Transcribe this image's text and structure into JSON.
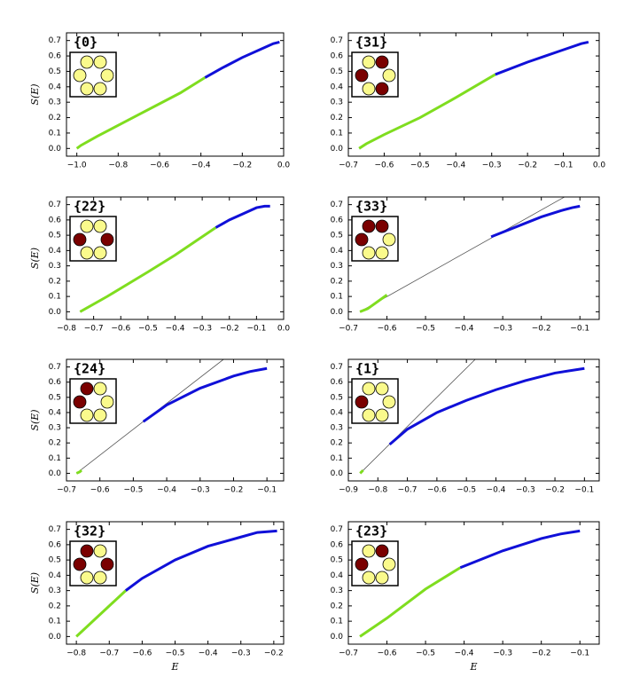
{
  "chart_data": [
    {
      "type": "line",
      "title": "{0}",
      "ylabel": "S(E)",
      "inset_colors": [
        "#fafa8c",
        "#fafa8c",
        "#fafa8c",
        "#fafa8c",
        "#fafa8c",
        "#fafa8c"
      ],
      "xlim": [
        -1.05,
        0.0
      ],
      "ylim": [
        -0.05,
        0.75
      ],
      "xticks": [
        {
          "value": -1.0,
          "label": "−1.0"
        },
        {
          "value": -0.8,
          "label": "−0.8"
        },
        {
          "value": -0.6,
          "label": "−0.6"
        },
        {
          "value": -0.4,
          "label": "−0.4"
        },
        {
          "value": -0.2,
          "label": "−0.2"
        },
        {
          "value": 0.0,
          "label": "0.0"
        }
      ],
      "yticks": [
        {
          "value": 0,
          "label": "0.0"
        },
        {
          "value": 0.1,
          "label": "0.1"
        },
        {
          "value": 0.2,
          "label": "0.2"
        },
        {
          "value": 0.3,
          "label": "0.3"
        },
        {
          "value": 0.4,
          "label": "0.4"
        },
        {
          "value": 0.5,
          "label": "0.5"
        },
        {
          "value": 0.6,
          "label": "0.6"
        },
        {
          "value": 0.7,
          "label": "0.7"
        }
      ],
      "series": [
        {
          "color": "#7fdd1f",
          "linewidth": 3,
          "x": [
            -1.0,
            -0.98,
            -0.9,
            -0.7,
            -0.5,
            -0.38
          ],
          "values": [
            0,
            0.02,
            0.08,
            0.22,
            0.36,
            0.46
          ]
        },
        {
          "color": "#1010d8",
          "linewidth": 3,
          "x": [
            -0.38,
            -0.3,
            -0.2,
            -0.1,
            -0.05,
            -0.02
          ],
          "values": [
            0.46,
            0.52,
            0.59,
            0.65,
            0.68,
            0.69
          ]
        }
      ]
    },
    {
      "type": "line",
      "title": "{31}",
      "inset_colors": [
        "#fafa8c",
        "#7a0000",
        "#7a0000",
        "#fafa8c",
        "#fafa8c",
        "#7a0000"
      ],
      "xlim": [
        -0.7,
        0.0
      ],
      "ylim": [
        -0.05,
        0.75
      ],
      "xticks": [
        {
          "value": -0.7,
          "label": "−0.7"
        },
        {
          "value": -0.6,
          "label": "−0.6"
        },
        {
          "value": -0.5,
          "label": "−0.5"
        },
        {
          "value": -0.4,
          "label": "−0.4"
        },
        {
          "value": -0.3,
          "label": "−0.3"
        },
        {
          "value": -0.2,
          "label": "−0.2"
        },
        {
          "value": -0.1,
          "label": "−0.1"
        },
        {
          "value": 0.0,
          "label": "0.0"
        }
      ],
      "yticks": [
        {
          "value": 0,
          "label": "0.0"
        },
        {
          "value": 0.1,
          "label": "0.1"
        },
        {
          "value": 0.2,
          "label": "0.2"
        },
        {
          "value": 0.3,
          "label": "0.3"
        },
        {
          "value": 0.4,
          "label": "0.4"
        },
        {
          "value": 0.5,
          "label": "0.5"
        },
        {
          "value": 0.6,
          "label": "0.6"
        },
        {
          "value": 0.7,
          "label": "0.7"
        }
      ],
      "series": [
        {
          "color": "#7fdd1f",
          "linewidth": 3,
          "x": [
            -0.67,
            -0.65,
            -0.6,
            -0.5,
            -0.4,
            -0.29
          ],
          "values": [
            0,
            0.03,
            0.09,
            0.2,
            0.33,
            0.48
          ]
        },
        {
          "color": "#1010d8",
          "linewidth": 3,
          "x": [
            -0.29,
            -0.2,
            -0.15,
            -0.1,
            -0.05,
            -0.03
          ],
          "values": [
            0.48,
            0.56,
            0.6,
            0.64,
            0.68,
            0.69
          ]
        }
      ]
    },
    {
      "type": "line",
      "title": "{22}",
      "ylabel": "S(E)",
      "inset_colors": [
        "#fafa8c",
        "#fafa8c",
        "#7a0000",
        "#7a0000",
        "#fafa8c",
        "#fafa8c"
      ],
      "xlim": [
        -0.8,
        0.0
      ],
      "ylim": [
        -0.05,
        0.75
      ],
      "xticks": [
        {
          "value": -0.8,
          "label": "−0.8"
        },
        {
          "value": -0.7,
          "label": "−0.7"
        },
        {
          "value": -0.6,
          "label": "−0.6"
        },
        {
          "value": -0.5,
          "label": "−0.5"
        },
        {
          "value": -0.4,
          "label": "−0.4"
        },
        {
          "value": -0.3,
          "label": "−0.3"
        },
        {
          "value": -0.2,
          "label": "−0.2"
        },
        {
          "value": -0.1,
          "label": "−0.1"
        },
        {
          "value": 0.0,
          "label": "0.0"
        }
      ],
      "yticks": [
        {
          "value": 0,
          "label": "0.0"
        },
        {
          "value": 0.1,
          "label": "0.1"
        },
        {
          "value": 0.2,
          "label": "0.2"
        },
        {
          "value": 0.3,
          "label": "0.3"
        },
        {
          "value": 0.4,
          "label": "0.4"
        },
        {
          "value": 0.5,
          "label": "0.5"
        },
        {
          "value": 0.6,
          "label": "0.6"
        },
        {
          "value": 0.7,
          "label": "0.7"
        }
      ],
      "series": [
        {
          "color": "#7fdd1f",
          "linewidth": 3,
          "x": [
            -0.75,
            -0.73,
            -0.65,
            -0.5,
            -0.4,
            -0.25
          ],
          "values": [
            0,
            0.02,
            0.1,
            0.26,
            0.37,
            0.55
          ]
        },
        {
          "color": "#1010d8",
          "linewidth": 3,
          "x": [
            -0.25,
            -0.2,
            -0.15,
            -0.1,
            -0.07,
            -0.05
          ],
          "values": [
            0.55,
            0.6,
            0.64,
            0.68,
            0.69,
            0.69
          ]
        }
      ]
    },
    {
      "type": "line",
      "title": "{33}",
      "inset_colors": [
        "#7a0000",
        "#7a0000",
        "#7a0000",
        "#fafa8c",
        "#fafa8c",
        "#fafa8c"
      ],
      "xlim": [
        -0.7,
        -0.05
      ],
      "ylim": [
        -0.05,
        0.75
      ],
      "xticks": [
        {
          "value": -0.7,
          "label": "−0.7"
        },
        {
          "value": -0.6,
          "label": "−0.6"
        },
        {
          "value": -0.5,
          "label": "−0.5"
        },
        {
          "value": -0.4,
          "label": "−0.4"
        },
        {
          "value": -0.3,
          "label": "−0.3"
        },
        {
          "value": -0.2,
          "label": "−0.2"
        },
        {
          "value": -0.1,
          "label": "−0.1"
        }
      ],
      "yticks": [
        {
          "value": 0,
          "label": "0.0"
        },
        {
          "value": 0.1,
          "label": "0.1"
        },
        {
          "value": 0.2,
          "label": "0.2"
        },
        {
          "value": 0.3,
          "label": "0.3"
        },
        {
          "value": 0.4,
          "label": "0.4"
        },
        {
          "value": 0.5,
          "label": "0.5"
        },
        {
          "value": 0.6,
          "label": "0.6"
        },
        {
          "value": 0.7,
          "label": "0.7"
        }
      ],
      "series": [
        {
          "color": "#555555",
          "linewidth": 0.8,
          "x": [
            -0.67,
            -0.14
          ],
          "values": [
            0,
            0.75
          ]
        },
        {
          "color": "#7fdd1f",
          "linewidth": 3,
          "x": [
            -0.67,
            -0.65,
            -0.6
          ],
          "values": [
            0,
            0.02,
            0.11
          ]
        },
        {
          "color": "#1010d8",
          "linewidth": 3,
          "x": [
            -0.33,
            -0.25,
            -0.2,
            -0.15,
            -0.12,
            -0.1
          ],
          "values": [
            0.49,
            0.57,
            0.62,
            0.66,
            0.68,
            0.69
          ]
        }
      ]
    },
    {
      "type": "line",
      "title": "{24}",
      "ylabel": "S(E)",
      "inset_colors": [
        "#7a0000",
        "#fafa8c",
        "#7a0000",
        "#fafa8c",
        "#fafa8c",
        "#fafa8c"
      ],
      "xlim": [
        -0.7,
        -0.05
      ],
      "ylim": [
        -0.05,
        0.75
      ],
      "xticks": [
        {
          "value": -0.7,
          "label": "−0.7"
        },
        {
          "value": -0.6,
          "label": "−0.6"
        },
        {
          "value": -0.5,
          "label": "−0.5"
        },
        {
          "value": -0.4,
          "label": "−0.4"
        },
        {
          "value": -0.3,
          "label": "−0.3"
        },
        {
          "value": -0.2,
          "label": "−0.2"
        },
        {
          "value": -0.1,
          "label": "−0.1"
        }
      ],
      "yticks": [
        {
          "value": 0,
          "label": "0.0"
        },
        {
          "value": 0.1,
          "label": "0.1"
        },
        {
          "value": 0.2,
          "label": "0.2"
        },
        {
          "value": 0.3,
          "label": "0.3"
        },
        {
          "value": 0.4,
          "label": "0.4"
        },
        {
          "value": 0.5,
          "label": "0.5"
        },
        {
          "value": 0.6,
          "label": "0.6"
        },
        {
          "value": 0.7,
          "label": "0.7"
        }
      ],
      "series": [
        {
          "color": "#555555",
          "linewidth": 0.8,
          "x": [
            -0.67,
            -0.23
          ],
          "values": [
            0,
            0.75
          ]
        },
        {
          "color": "#7fdd1f",
          "linewidth": 3,
          "x": [
            -0.67,
            -0.66,
            -0.655
          ],
          "values": [
            0,
            0.01,
            0.02
          ]
        },
        {
          "color": "#1010d8",
          "linewidth": 3,
          "x": [
            -0.47,
            -0.4,
            -0.3,
            -0.2,
            -0.15,
            -0.1
          ],
          "values": [
            0.34,
            0.45,
            0.56,
            0.64,
            0.67,
            0.69
          ]
        }
      ]
    },
    {
      "type": "line",
      "title": "{1}",
      "inset_colors": [
        "#fafa8c",
        "#fafa8c",
        "#7a0000",
        "#fafa8c",
        "#fafa8c",
        "#fafa8c"
      ],
      "xlim": [
        -0.9,
        -0.05
      ],
      "ylim": [
        -0.05,
        0.75
      ],
      "xticks": [
        {
          "value": -0.9,
          "label": "−0.9"
        },
        {
          "value": -0.8,
          "label": "−0.8"
        },
        {
          "value": -0.7,
          "label": "−0.7"
        },
        {
          "value": -0.6,
          "label": "−0.6"
        },
        {
          "value": -0.5,
          "label": "−0.5"
        },
        {
          "value": -0.4,
          "label": "−0.4"
        },
        {
          "value": -0.3,
          "label": "−0.3"
        },
        {
          "value": -0.2,
          "label": "−0.2"
        },
        {
          "value": -0.1,
          "label": "−0.1"
        }
      ],
      "yticks": [
        {
          "value": 0,
          "label": "0.0"
        },
        {
          "value": 0.1,
          "label": "0.1"
        },
        {
          "value": 0.2,
          "label": "0.2"
        },
        {
          "value": 0.3,
          "label": "0.3"
        },
        {
          "value": 0.4,
          "label": "0.4"
        },
        {
          "value": 0.5,
          "label": "0.5"
        },
        {
          "value": 0.6,
          "label": "0.6"
        },
        {
          "value": 0.7,
          "label": "0.7"
        }
      ],
      "series": [
        {
          "color": "#555555",
          "linewidth": 0.8,
          "x": [
            -0.86,
            -0.47
          ],
          "values": [
            0,
            0.75
          ]
        },
        {
          "color": "#7fdd1f",
          "linewidth": 3,
          "x": [
            -0.86,
            -0.855,
            -0.85
          ],
          "values": [
            0,
            0.01,
            0.02
          ]
        },
        {
          "color": "#1010d8",
          "linewidth": 3,
          "x": [
            -0.76,
            -0.7,
            -0.6,
            -0.5,
            -0.4,
            -0.3,
            -0.2,
            -0.1
          ],
          "values": [
            0.19,
            0.29,
            0.4,
            0.48,
            0.55,
            0.61,
            0.66,
            0.69
          ]
        }
      ]
    },
    {
      "type": "line",
      "title": "{32}",
      "ylabel": "S(E)",
      "xlabel": "E",
      "inset_colors": [
        "#7a0000",
        "#fafa8c",
        "#7a0000",
        "#7a0000",
        "#fafa8c",
        "#fafa8c"
      ],
      "xlim": [
        -0.83,
        -0.17
      ],
      "ylim": [
        -0.05,
        0.75
      ],
      "xticks": [
        {
          "value": -0.8,
          "label": "−0.8"
        },
        {
          "value": -0.7,
          "label": "−0.7"
        },
        {
          "value": -0.6,
          "label": "−0.6"
        },
        {
          "value": -0.5,
          "label": "−0.5"
        },
        {
          "value": -0.4,
          "label": "−0.4"
        },
        {
          "value": -0.3,
          "label": "−0.3"
        },
        {
          "value": -0.2,
          "label": "−0.2"
        }
      ],
      "yticks": [
        {
          "value": 0,
          "label": "0.0"
        },
        {
          "value": 0.1,
          "label": "0.1"
        },
        {
          "value": 0.2,
          "label": "0.2"
        },
        {
          "value": 0.3,
          "label": "0.3"
        },
        {
          "value": 0.4,
          "label": "0.4"
        },
        {
          "value": 0.5,
          "label": "0.5"
        },
        {
          "value": 0.6,
          "label": "0.6"
        },
        {
          "value": 0.7,
          "label": "0.7"
        }
      ],
      "series": [
        {
          "color": "#7fdd1f",
          "linewidth": 3,
          "x": [
            -0.8,
            -0.78,
            -0.75,
            -0.7,
            -0.65
          ],
          "values": [
            0,
            0.04,
            0.1,
            0.2,
            0.3
          ]
        },
        {
          "color": "#1010d8",
          "linewidth": 3,
          "x": [
            -0.65,
            -0.6,
            -0.5,
            -0.4,
            -0.3,
            -0.25,
            -0.19
          ],
          "values": [
            0.3,
            0.38,
            0.5,
            0.59,
            0.65,
            0.68,
            0.69
          ]
        }
      ]
    },
    {
      "type": "line",
      "title": "{23}",
      "xlabel": "E",
      "inset_colors": [
        "#fafa8c",
        "#7a0000",
        "#7a0000",
        "#fafa8c",
        "#fafa8c",
        "#fafa8c"
      ],
      "xlim": [
        -0.7,
        -0.05
      ],
      "ylim": [
        -0.05,
        0.75
      ],
      "xticks": [
        {
          "value": -0.7,
          "label": "−0.7"
        },
        {
          "value": -0.6,
          "label": "−0.6"
        },
        {
          "value": -0.5,
          "label": "−0.5"
        },
        {
          "value": -0.4,
          "label": "−0.4"
        },
        {
          "value": -0.3,
          "label": "−0.3"
        },
        {
          "value": -0.2,
          "label": "−0.2"
        },
        {
          "value": -0.1,
          "label": "−0.1"
        }
      ],
      "yticks": [
        {
          "value": 0,
          "label": "0.0"
        },
        {
          "value": 0.1,
          "label": "0.1"
        },
        {
          "value": 0.2,
          "label": "0.2"
        },
        {
          "value": 0.3,
          "label": "0.3"
        },
        {
          "value": 0.4,
          "label": "0.4"
        },
        {
          "value": 0.5,
          "label": "0.5"
        },
        {
          "value": 0.6,
          "label": "0.6"
        },
        {
          "value": 0.7,
          "label": "0.7"
        }
      ],
      "series": [
        {
          "color": "#7fdd1f",
          "linewidth": 3,
          "x": [
            -0.67,
            -0.6,
            -0.5,
            -0.41
          ],
          "values": [
            0,
            0.12,
            0.31,
            0.45
          ]
        },
        {
          "color": "#1010d8",
          "linewidth": 3,
          "x": [
            -0.41,
            -0.3,
            -0.2,
            -0.15,
            -0.1
          ],
          "values": [
            0.45,
            0.56,
            0.64,
            0.67,
            0.69
          ]
        }
      ]
    }
  ]
}
